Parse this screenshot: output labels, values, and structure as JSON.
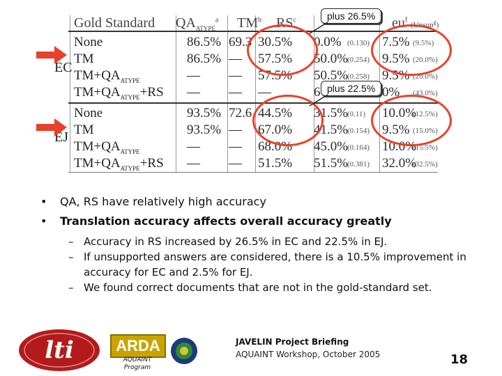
{
  "table": {
    "headers": [
      "Gold Standard",
      "QA",
      "ATYPE",
      "a",
      "TM",
      "b",
      "RS",
      "c",
      "eu",
      "f",
      "(Unsup",
      "g",
      ")"
    ],
    "rows": [
      {
        "group": "EC",
        "label": "None",
        "sub": "",
        "suffix": "",
        "qa": "86.5%",
        "tm": "69.3",
        "rs": "30.5%",
        "c5": "0.0%",
        "c5s": "(0.130)",
        "c6": "7.5%",
        "c6s": "(9.5%)"
      },
      {
        "group": "",
        "label": "TM",
        "sub": "",
        "suffix": "",
        "qa": "86.5%",
        "tm": "—",
        "rs": "57.5%",
        "c5": "50.0%",
        "c5s": "(0.254)",
        "c6": "9.5%",
        "c6s": "(20.0%)"
      },
      {
        "group": "",
        "label": "TM+QA",
        "sub": "ATYPE",
        "suffix": "",
        "qa": "—",
        "tm": "—",
        "rs": "57.5%",
        "c5": "50.5%",
        "c5s": "(0.258)",
        "c6": "9.5%",
        "c6s": "(20.0%)"
      },
      {
        "group": "",
        "label": "TM+QA",
        "sub": "ATYPE",
        "suffix": "+RS",
        "qa": "—",
        "tm": "—",
        "rs": "—",
        "c5": "6",
        "c5s": "",
        "c6": "0%",
        "c6s": "(43.0%)"
      },
      {
        "group": "EJ",
        "label": "None",
        "sub": "",
        "suffix": "",
        "qa": "93.5%",
        "tm": "72.6",
        "rs": "44.5%",
        "c5": "31.5%",
        "c5s": "(0.11)",
        "c6": "10.0%",
        "c6s": "(12.5%)"
      },
      {
        "group": "",
        "label": "TM",
        "sub": "",
        "suffix": "",
        "qa": "93.5%",
        "tm": "—",
        "rs": "67.0%",
        "c5": "41.5%",
        "c5s": "(0.154)",
        "c6": "9.5%",
        "c6s": "(15.0%)"
      },
      {
        "group": "",
        "label": "TM+QA",
        "sub": "ATYPE",
        "suffix": "",
        "qa": "—",
        "tm": "—",
        "rs": "68.0%",
        "c5": "45.0%",
        "c5s": "(0.164)",
        "c6": "10.0%",
        "c6s": "(15.5%)"
      },
      {
        "group": "",
        "label": "TM+QA",
        "sub": "ATYPE",
        "suffix": "+RS",
        "qa": "—",
        "tm": "—",
        "rs": "51.5%",
        "c5": "51.5%",
        "c5s": "(0.381)",
        "c6": "32.0%",
        "c6s": "(32.5%)"
      }
    ]
  },
  "callouts": {
    "top": "plus 26.5%",
    "mid": "plus 22.5%"
  },
  "accent_color": "#e8402a",
  "bullets": [
    {
      "text": "QA, RS have relatively high accuracy",
      "bold": false
    },
    {
      "text": "Translation accuracy affects overall accuracy greatly",
      "bold": true
    }
  ],
  "subbullets": [
    "Accuracy in RS increased by 26.5% in EC and 22.5% in EJ.",
    "If unsupported answers are considered, there is a 10.5% improvement in accuracy for EC and 2.5% for EJ.",
    "We found correct documents that are not in the gold-standard set."
  ],
  "footer": {
    "lti_logo": "lti",
    "arda_logo": "ARDA",
    "aquaint_1": "AQUAINT",
    "aquaint_2": "Program",
    "briefing": "JAVELIN Project Briefing",
    "workshop": "AQUAINT Workshop, October 2005",
    "page": "18"
  }
}
